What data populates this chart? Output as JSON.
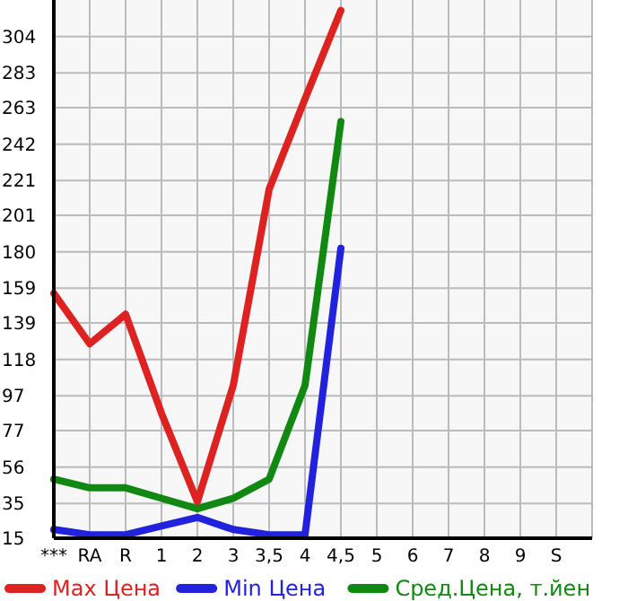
{
  "chart_data": {
    "type": "line",
    "categories": [
      "***",
      "RA",
      "R",
      "1",
      "2",
      "3",
      "3,5",
      "4",
      "4,5",
      "5",
      "6",
      "7",
      "8",
      "9",
      "S"
    ],
    "series": [
      {
        "name": "Max Цена",
        "color": "#dd2222",
        "values": [
          156,
          127,
          144,
          87,
          36,
          103,
          216,
          268,
          319,
          null,
          null,
          null,
          null,
          null,
          null
        ]
      },
      {
        "name": "Min Цена",
        "color": "#2222dd",
        "values": [
          20,
          17,
          17,
          22,
          27,
          20,
          17,
          17,
          182,
          null,
          null,
          null,
          null,
          null,
          null
        ]
      },
      {
        "name": "Сред.Цена, т.йен",
        "color": "#118811",
        "values": [
          49,
          44,
          44,
          38,
          32,
          38,
          49,
          103,
          255,
          null,
          null,
          null,
          null,
          null,
          null
        ]
      }
    ],
    "ylim": [
      15,
      325
    ],
    "yticks": [
      15,
      35,
      56,
      77,
      97,
      118,
      139,
      159,
      180,
      201,
      221,
      242,
      263,
      283,
      304
    ],
    "grid": true,
    "legend": "bottom",
    "marker": "none",
    "line_style": "solid"
  }
}
